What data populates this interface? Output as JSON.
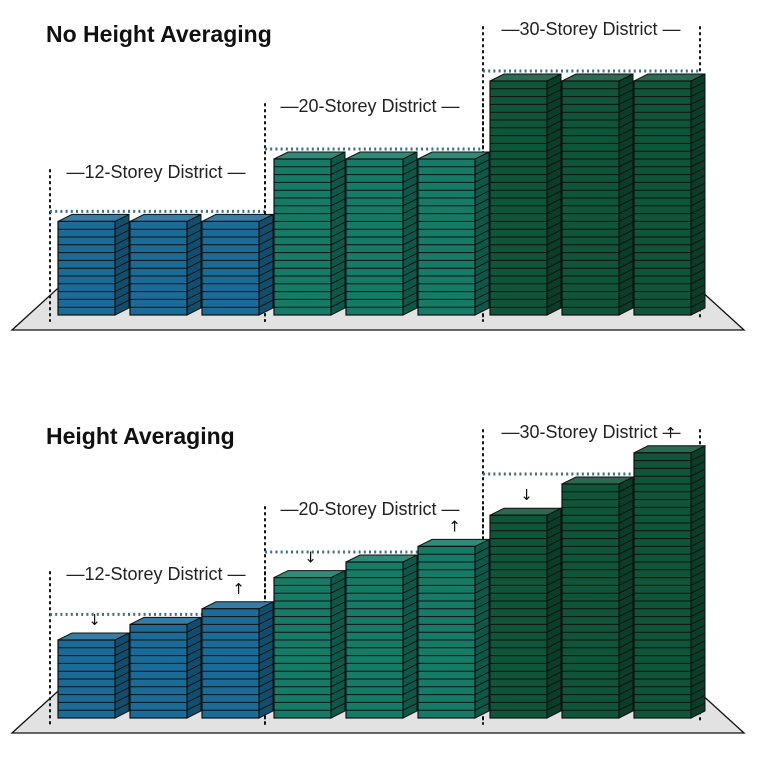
{
  "panels": [
    {
      "title": "No Height Averaging",
      "districts": [
        {
          "label": "—12-Storey District —",
          "limit_storeys": 12,
          "buildings": [
            12,
            12,
            12
          ],
          "arrows": [
            "",
            "",
            ""
          ]
        },
        {
          "label": "—20-Storey District —",
          "limit_storeys": 20,
          "buildings": [
            20,
            20,
            20
          ],
          "arrows": [
            "",
            "",
            ""
          ]
        },
        {
          "label": "—30-Storey District —",
          "limit_storeys": 30,
          "buildings": [
            30,
            30,
            30
          ],
          "arrows": [
            "",
            "",
            ""
          ]
        }
      ]
    },
    {
      "title": "Height Averaging",
      "districts": [
        {
          "label": "—12-Storey District —",
          "limit_storeys": 12,
          "buildings": [
            10,
            12,
            14
          ],
          "arrows": [
            "down",
            "",
            "up"
          ]
        },
        {
          "label": "—20-Storey District —",
          "limit_storeys": 20,
          "buildings": [
            18,
            20,
            22
          ],
          "arrows": [
            "down",
            "",
            "up"
          ]
        },
        {
          "label": "—30-Storey District —",
          "limit_storeys": 30,
          "buildings": [
            26,
            30,
            34
          ],
          "arrows": [
            "down",
            "",
            "up"
          ]
        }
      ]
    }
  ],
  "colors": {
    "district_12": "#1a6b98",
    "district_20": "#157a66",
    "district_30": "#0f5539",
    "limit_line": "#3d6f86",
    "ground": "#e2e2e2",
    "outline": "#111111"
  }
}
